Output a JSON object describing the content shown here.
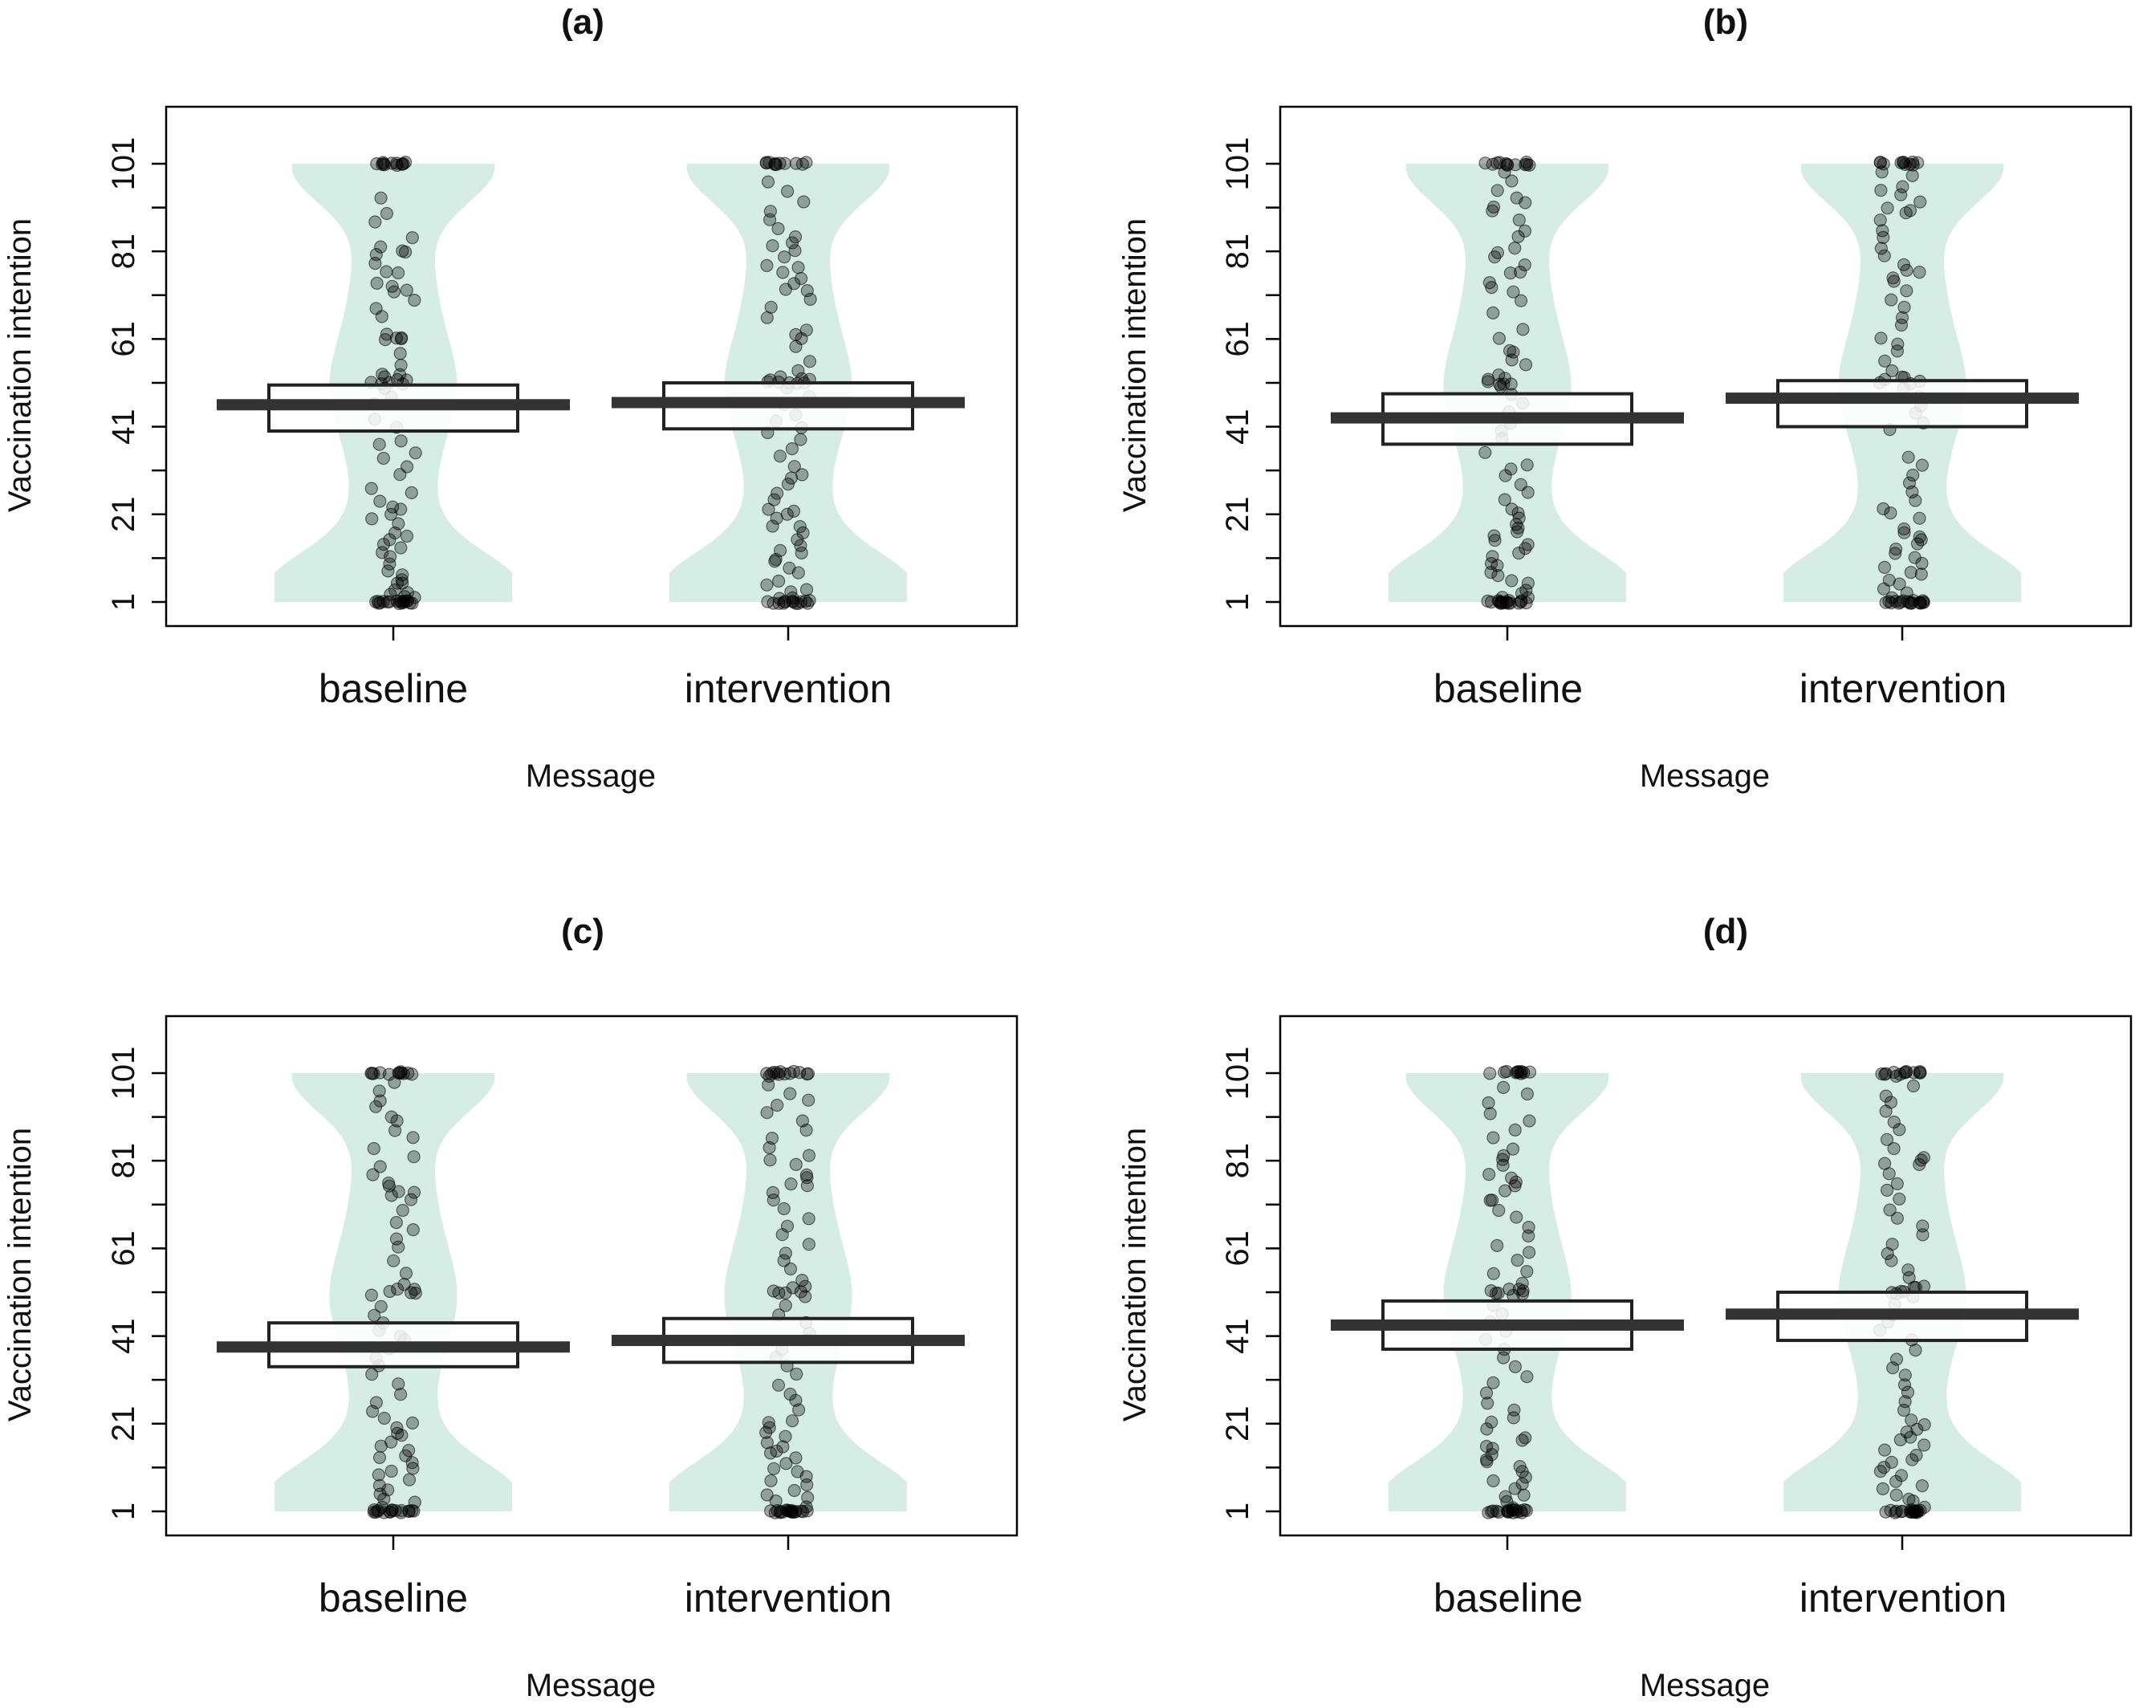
{
  "chart_data": [
    {
      "type": "violin-box-jitter",
      "title": "(a)",
      "xlabel": "Message",
      "ylabel": "Vaccination intention",
      "categories": [
        "baseline",
        "intervention"
      ],
      "yticks": [
        1,
        21,
        41,
        61,
        81,
        101
      ],
      "ylim": [
        -4.5,
        114
      ],
      "boxes": [
        {
          "q1": 40,
          "median": 46,
          "q3": 50.5
        },
        {
          "q1": 40.5,
          "median": 46.5,
          "q3": 51
        }
      ],
      "points": [
        [
          1,
          1,
          1,
          1,
          1,
          1,
          1,
          1,
          1,
          1,
          1,
          1,
          1,
          1,
          1,
          1,
          1,
          1,
          2,
          2,
          3,
          3,
          4,
          5,
          5,
          6,
          7,
          8,
          10,
          11,
          12,
          13,
          14,
          15,
          16,
          17,
          19,
          20,
          21,
          22,
          23,
          24,
          26,
          27,
          30,
          32,
          34,
          35,
          37,
          38,
          41,
          43,
          46,
          48,
          50,
          51,
          51,
          51,
          51,
          52,
          52,
          52,
          53,
          53,
          55,
          58,
          61,
          61,
          61,
          61,
          62,
          66,
          68,
          70,
          72,
          72,
          73,
          74,
          76,
          76,
          78,
          80,
          81,
          81,
          82,
          84,
          88,
          90,
          93,
          101,
          101,
          101,
          101,
          101,
          101,
          101,
          101,
          101,
          101,
          101,
          101
        ],
        [
          1,
          1,
          1,
          1,
          1,
          1,
          1,
          1,
          1,
          1,
          1,
          1,
          1,
          1,
          2,
          2,
          3,
          4,
          5,
          6,
          8,
          9,
          10,
          11,
          12,
          13,
          14,
          15,
          17,
          18,
          18,
          20,
          21,
          22,
          22,
          24,
          26,
          28,
          29,
          30,
          32,
          34,
          36,
          38,
          40,
          41,
          42,
          44,
          46,
          48,
          50,
          51,
          51,
          51,
          51,
          51,
          52,
          52,
          52,
          52,
          54,
          56,
          59,
          61,
          62,
          63,
          66,
          68,
          70,
          72,
          72,
          74,
          75,
          76,
          77,
          78,
          80,
          81,
          82,
          83,
          84,
          86,
          88,
          90,
          92,
          95,
          97,
          101,
          101,
          101,
          101,
          101,
          101,
          101,
          101,
          101,
          101,
          101
        ]
      ]
    },
    {
      "type": "violin-box-jitter",
      "title": "(b)",
      "xlabel": "Message",
      "ylabel": "Vaccination intention",
      "categories": [
        "baseline",
        "intervention"
      ],
      "yticks": [
        1,
        21,
        41,
        61,
        81,
        101
      ],
      "ylim": [
        -4.5,
        114
      ],
      "boxes": [
        {
          "q1": 37,
          "median": 43,
          "q3": 48.5
        },
        {
          "q1": 41,
          "median": 47.5,
          "q3": 51.5
        }
      ],
      "points": [
        [
          1,
          1,
          1,
          1,
          1,
          1,
          1,
          1,
          1,
          1,
          1,
          1,
          1,
          1,
          1,
          1,
          1,
          2,
          2,
          3,
          4,
          5,
          6,
          7,
          8,
          9,
          10,
          11,
          12,
          13,
          14,
          15,
          16,
          17,
          18,
          19,
          20,
          21,
          22,
          24,
          26,
          28,
          30,
          31,
          32,
          35,
          38,
          40,
          42,
          44,
          46,
          48,
          50,
          51,
          51,
          51,
          51,
          52,
          52,
          53,
          55,
          56,
          58,
          58,
          61,
          63,
          67,
          70,
          72,
          73,
          74,
          76,
          76,
          78,
          80,
          81,
          82,
          84,
          86,
          88,
          90,
          91,
          92,
          93,
          95,
          97,
          99,
          101,
          101,
          101,
          101,
          101,
          101,
          101,
          101,
          101,
          101,
          101,
          101
        ],
        [
          1,
          1,
          1,
          1,
          1,
          1,
          1,
          1,
          1,
          1,
          1,
          1,
          1,
          1,
          1,
          1,
          1,
          1,
          2,
          3,
          4,
          5,
          6,
          7,
          8,
          9,
          10,
          11,
          12,
          13,
          14,
          15,
          16,
          17,
          18,
          20,
          21,
          22,
          24,
          26,
          28,
          30,
          32,
          34,
          40,
          42,
          44,
          46,
          48,
          50,
          51,
          51,
          51,
          52,
          52,
          52,
          54,
          56,
          58,
          60,
          61,
          64,
          66,
          68,
          70,
          72,
          74,
          75,
          76,
          77,
          78,
          80,
          82,
          84,
          86,
          88,
          90,
          90,
          91,
          92,
          94,
          95,
          96,
          98,
          99,
          101,
          101,
          101,
          101,
          101,
          101,
          101,
          101,
          101,
          101,
          101
        ]
      ]
    },
    {
      "type": "violin-box-jitter",
      "title": "(c)",
      "xlabel": "Message",
      "ylabel": "Vaccination intention",
      "categories": [
        "baseline",
        "intervention"
      ],
      "yticks": [
        1,
        21,
        41,
        61,
        81,
        101
      ],
      "ylim": [
        -4.5,
        114
      ],
      "boxes": [
        {
          "q1": 34,
          "median": 38.5,
          "q3": 44
        },
        {
          "q1": 35,
          "median": 40,
          "q3": 45
        }
      ],
      "points": [
        [
          1,
          1,
          1,
          1,
          1,
          1,
          1,
          1,
          1,
          1,
          1,
          1,
          1,
          1,
          1,
          1,
          1,
          2,
          3,
          4,
          5,
          6,
          7,
          8,
          9,
          10,
          11,
          12,
          13,
          14,
          15,
          16,
          17,
          18,
          19,
          20,
          21,
          22,
          24,
          26,
          28,
          30,
          32,
          34,
          36,
          38,
          40,
          41,
          42,
          44,
          46,
          48,
          50,
          51,
          51,
          51,
          52,
          52,
          53,
          55,
          58,
          61,
          63,
          65,
          67,
          70,
          72,
          73,
          74,
          74,
          75,
          76,
          78,
          80,
          82,
          84,
          86,
          88,
          90,
          91,
          93,
          95,
          97,
          99,
          101,
          101,
          101,
          101,
          101,
          101,
          101,
          101,
          101,
          101,
          101,
          101
        ],
        [
          1,
          1,
          1,
          1,
          1,
          1,
          1,
          1,
          1,
          1,
          1,
          1,
          1,
          1,
          1,
          1,
          1,
          1,
          2,
          3,
          4,
          5,
          6,
          7,
          8,
          9,
          10,
          11,
          12,
          13,
          14,
          15,
          16,
          17,
          18,
          19,
          20,
          21,
          22,
          24,
          26,
          28,
          30,
          32,
          34,
          36,
          38,
          40,
          42,
          44,
          46,
          48,
          50,
          51,
          51,
          51,
          51,
          52,
          52,
          54,
          56,
          58,
          60,
          62,
          64,
          66,
          68,
          70,
          72,
          74,
          75,
          76,
          77,
          78,
          80,
          81,
          82,
          84,
          86,
          88,
          90,
          92,
          94,
          95,
          96,
          98,
          100,
          101,
          101,
          101,
          101,
          101,
          101,
          101,
          101,
          101,
          101,
          101,
          101
        ]
      ]
    },
    {
      "type": "violin-box-jitter",
      "title": "(d)",
      "xlabel": "Message",
      "ylabel": "Vaccination intention",
      "categories": [
        "baseline",
        "intervention"
      ],
      "yticks": [
        1,
        21,
        41,
        61,
        81,
        101
      ],
      "ylim": [
        -4.5,
        114
      ],
      "boxes": [
        {
          "q1": 38,
          "median": 43.5,
          "q3": 49
        },
        {
          "q1": 40,
          "median": 46,
          "q3": 51
        }
      ],
      "points": [
        [
          1,
          1,
          1,
          1,
          1,
          1,
          1,
          1,
          1,
          1,
          1,
          1,
          1,
          1,
          1,
          1,
          1,
          1,
          2,
          3,
          4,
          5,
          6,
          7,
          8,
          9,
          10,
          11,
          12,
          13,
          14,
          15,
          16,
          17,
          18,
          20,
          21,
          22,
          24,
          26,
          28,
          30,
          32,
          34,
          36,
          38,
          40,
          42,
          44,
          46,
          48,
          50,
          51,
          51,
          51,
          51,
          51,
          52,
          52,
          53,
          55,
          56,
          58,
          60,
          62,
          64,
          66,
          68,
          70,
          72,
          72,
          74,
          75,
          76,
          77,
          78,
          80,
          81,
          82,
          84,
          86,
          88,
          90,
          92,
          94,
          96,
          98,
          101,
          101,
          101,
          101,
          101,
          101,
          101,
          101,
          101,
          101,
          101
        ],
        [
          1,
          1,
          1,
          1,
          1,
          1,
          1,
          1,
          1,
          1,
          1,
          1,
          1,
          1,
          1,
          1,
          1,
          1,
          2,
          3,
          4,
          5,
          6,
          7,
          8,
          9,
          10,
          11,
          12,
          13,
          14,
          15,
          16,
          17,
          18,
          19,
          20,
          21,
          22,
          24,
          26,
          28,
          30,
          32,
          34,
          36,
          38,
          40,
          42,
          44,
          46,
          48,
          50,
          51,
          51,
          51,
          51,
          52,
          52,
          52,
          54,
          56,
          58,
          60,
          62,
          64,
          66,
          68,
          70,
          72,
          74,
          76,
          78,
          80,
          80,
          81,
          82,
          84,
          86,
          88,
          90,
          92,
          94,
          96,
          98,
          100,
          101,
          101,
          101,
          101,
          101,
          101,
          101,
          101,
          101,
          101,
          101,
          101
        ]
      ]
    }
  ],
  "colors": {
    "violin": "#d6ede5",
    "points": "#000000",
    "box_border": "#222222",
    "median_bar": "#333333",
    "frame": "#000000"
  }
}
